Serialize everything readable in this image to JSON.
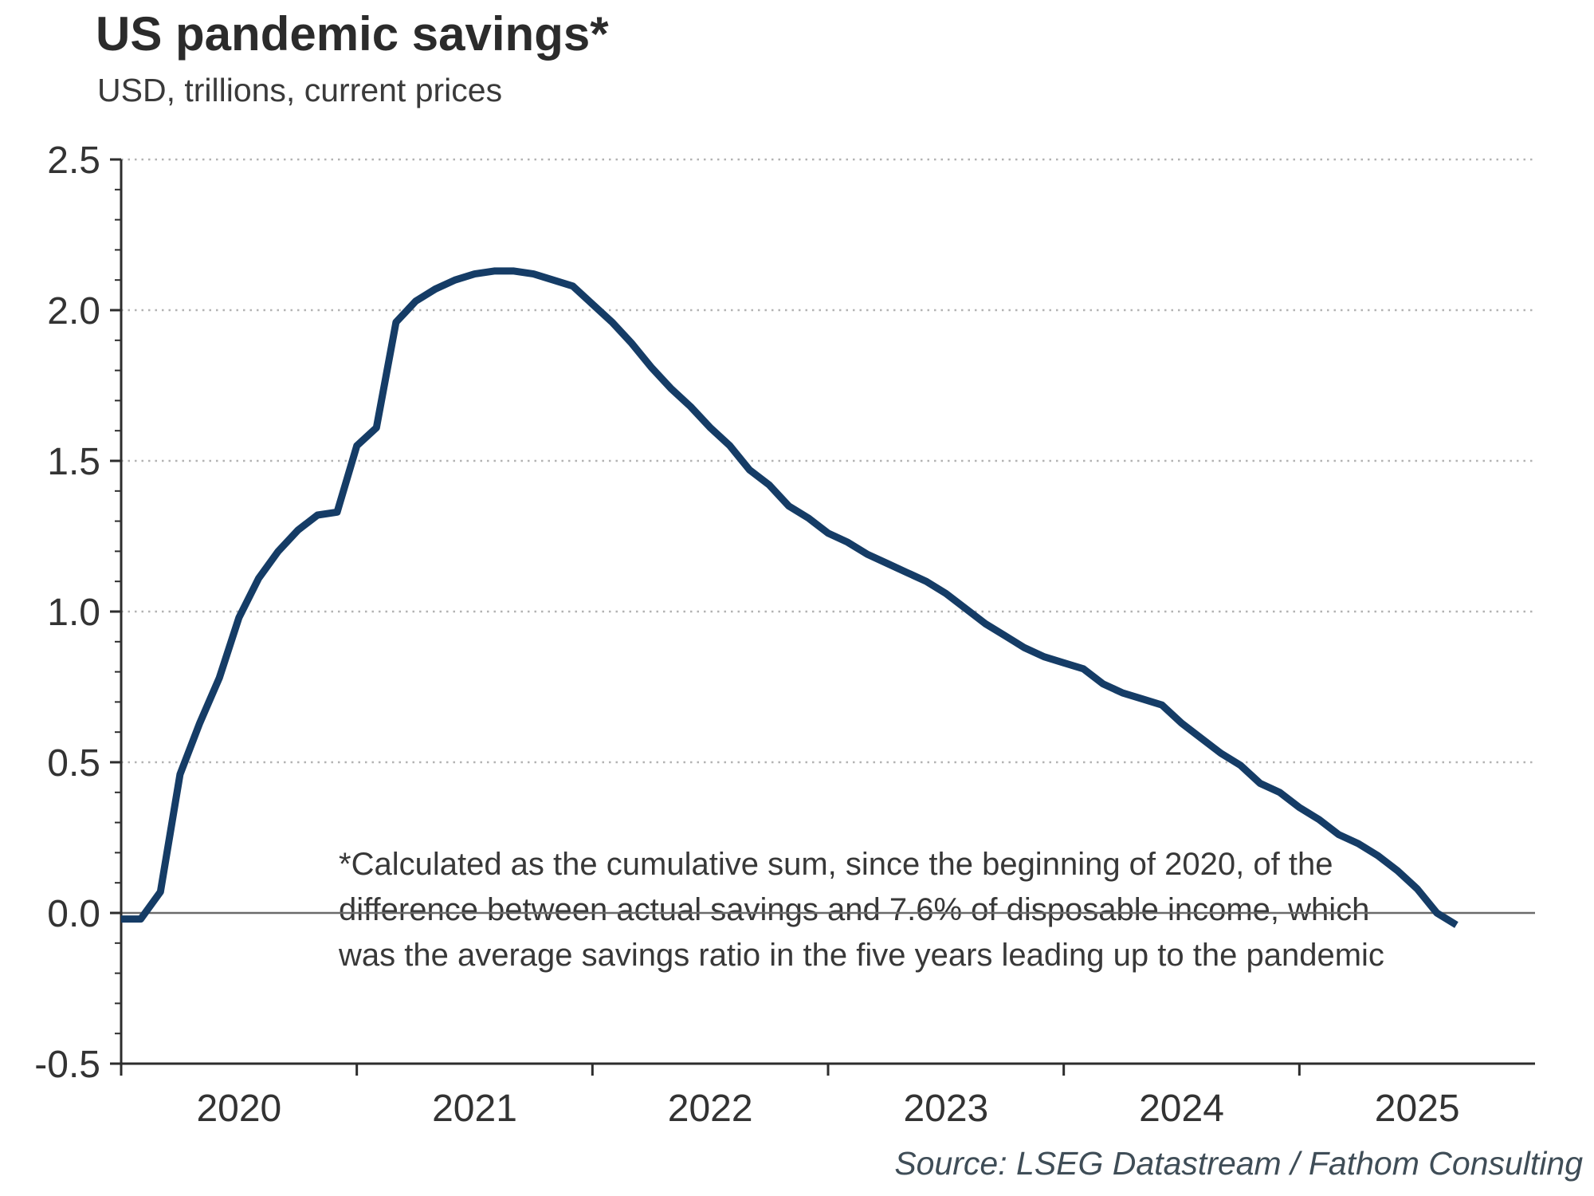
{
  "chart_data": {
    "type": "line",
    "title": "US pandemic savings*",
    "subtitle": "USD, trillions, current prices",
    "x_start": "2020-01",
    "x_axis_end": "2026-01",
    "frequency": "monthly",
    "ylim": [
      -0.5,
      2.5
    ],
    "y_tick_step": 0.5,
    "y_minor_tick_step": 0.1,
    "grid": "horizontal dotted at each 0.5, solid gray line at 0",
    "legend_position": "none",
    "x_tick_labels": [
      "2020",
      "2021",
      "2022",
      "2023",
      "2024",
      "2025"
    ],
    "y_tick_labels": [
      "-0.5",
      "0.0",
      "0.5",
      "1.0",
      "1.5",
      "2.0",
      "2.5"
    ],
    "series": [
      {
        "name": "US pandemic savings, USD trillions",
        "color": "#153c66",
        "values": [
          -0.02,
          -0.02,
          0.07,
          0.46,
          0.63,
          0.78,
          0.98,
          1.11,
          1.2,
          1.27,
          1.32,
          1.33,
          1.55,
          1.61,
          1.96,
          2.03,
          2.07,
          2.1,
          2.12,
          2.13,
          2.13,
          2.12,
          2.1,
          2.08,
          2.02,
          1.96,
          1.89,
          1.81,
          1.74,
          1.68,
          1.61,
          1.55,
          1.47,
          1.42,
          1.35,
          1.31,
          1.26,
          1.23,
          1.19,
          1.16,
          1.13,
          1.1,
          1.06,
          1.01,
          0.96,
          0.92,
          0.88,
          0.85,
          0.83,
          0.81,
          0.76,
          0.73,
          0.71,
          0.69,
          0.63,
          0.58,
          0.53,
          0.49,
          0.43,
          0.4,
          0.35,
          0.31,
          0.26,
          0.23,
          0.19,
          0.14,
          0.08,
          0.0,
          -0.04
        ]
      }
    ],
    "annotation": {
      "lines": [
        "*Calculated as the cumulative sum, since the beginning of 2020, of the",
        "difference between actual savings and 7.6% of disposable income, which",
        "was the average savings ratio in the five years leading up to the pandemic"
      ]
    },
    "source": "Source: LSEG Datastream / Fathom Consulting",
    "colors": {
      "line": "#153c66",
      "gridline": "#b3b3b3",
      "zero_line": "#6b6b6b",
      "axis": "#2d2d2d",
      "text": "#333333"
    }
  }
}
